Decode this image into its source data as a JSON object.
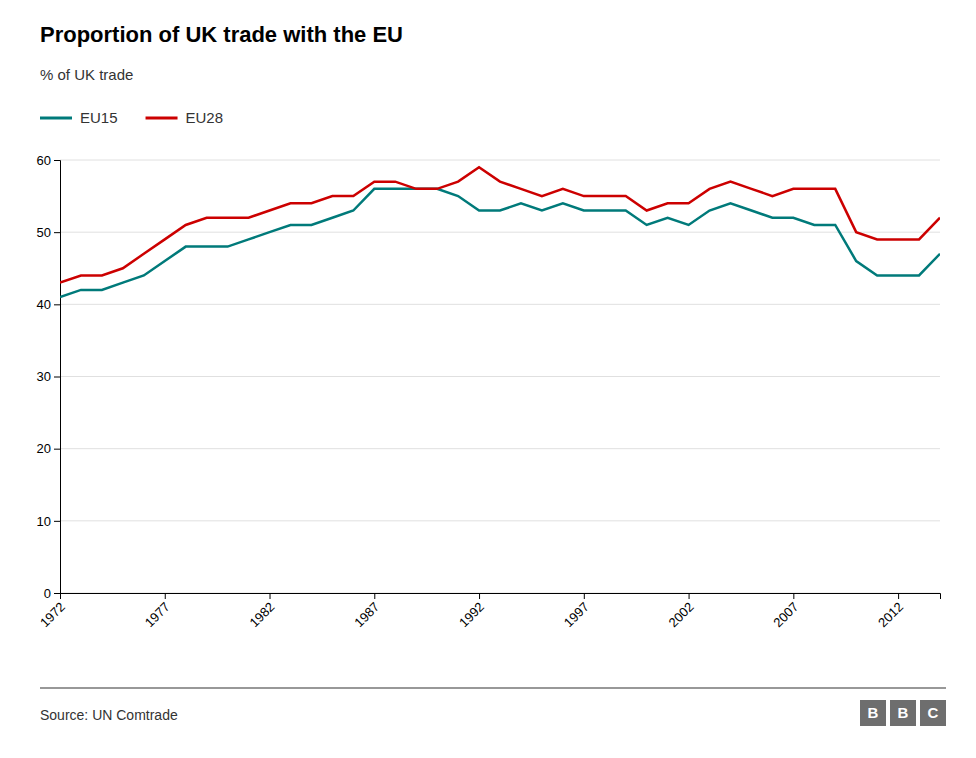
{
  "chart_data": {
    "type": "line",
    "title": "Proportion of UK trade with the EU",
    "ylabel": "% of UK trade",
    "annotations": [
      "Source: UN Comtrade",
      "B",
      "B",
      "C"
    ],
    "x": [
      1972,
      1973,
      1974,
      1975,
      1976,
      1977,
      1978,
      1979,
      1980,
      1981,
      1982,
      1983,
      1984,
      1985,
      1986,
      1987,
      1988,
      1989,
      1990,
      1991,
      1992,
      1993,
      1994,
      1995,
      1996,
      1997,
      1998,
      1999,
      2000,
      2001,
      2002,
      2003,
      2004,
      2005,
      2006,
      2007,
      2008,
      2009,
      2010,
      2011,
      2012,
      2013,
      2014
    ],
    "series": [
      {
        "name": "EU15",
        "color": "#007a7a",
        "values": [
          41,
          42,
          42,
          43,
          44,
          46,
          48,
          48,
          48,
          49,
          50,
          51,
          51,
          52,
          53,
          56,
          56,
          56,
          56,
          55,
          53,
          53,
          54,
          53,
          54,
          53,
          53,
          53,
          51,
          52,
          51,
          53,
          54,
          53,
          52,
          52,
          51,
          51,
          46,
          44,
          44,
          44,
          47
        ]
      },
      {
        "name": "EU28",
        "color": "#cc0000",
        "values": [
          43,
          44,
          44,
          45,
          47,
          49,
          51,
          52,
          52,
          52,
          53,
          54,
          54,
          55,
          55,
          57,
          57,
          56,
          56,
          57,
          59,
          57,
          56,
          55,
          56,
          55,
          55,
          55,
          53,
          54,
          54,
          56,
          57,
          56,
          55,
          56,
          56,
          56,
          50,
          49,
          49,
          49,
          52
        ]
      }
    ],
    "xlim": [
      1972,
      2014
    ],
    "xticks": [
      1972,
      1977,
      1982,
      1987,
      1992,
      1997,
      2002,
      2007,
      2012
    ],
    "ylim": [
      0,
      60
    ],
    "yticks": [
      0,
      10,
      20,
      30,
      40,
      50,
      60
    ],
    "grid": true,
    "legend": "upper left"
  }
}
